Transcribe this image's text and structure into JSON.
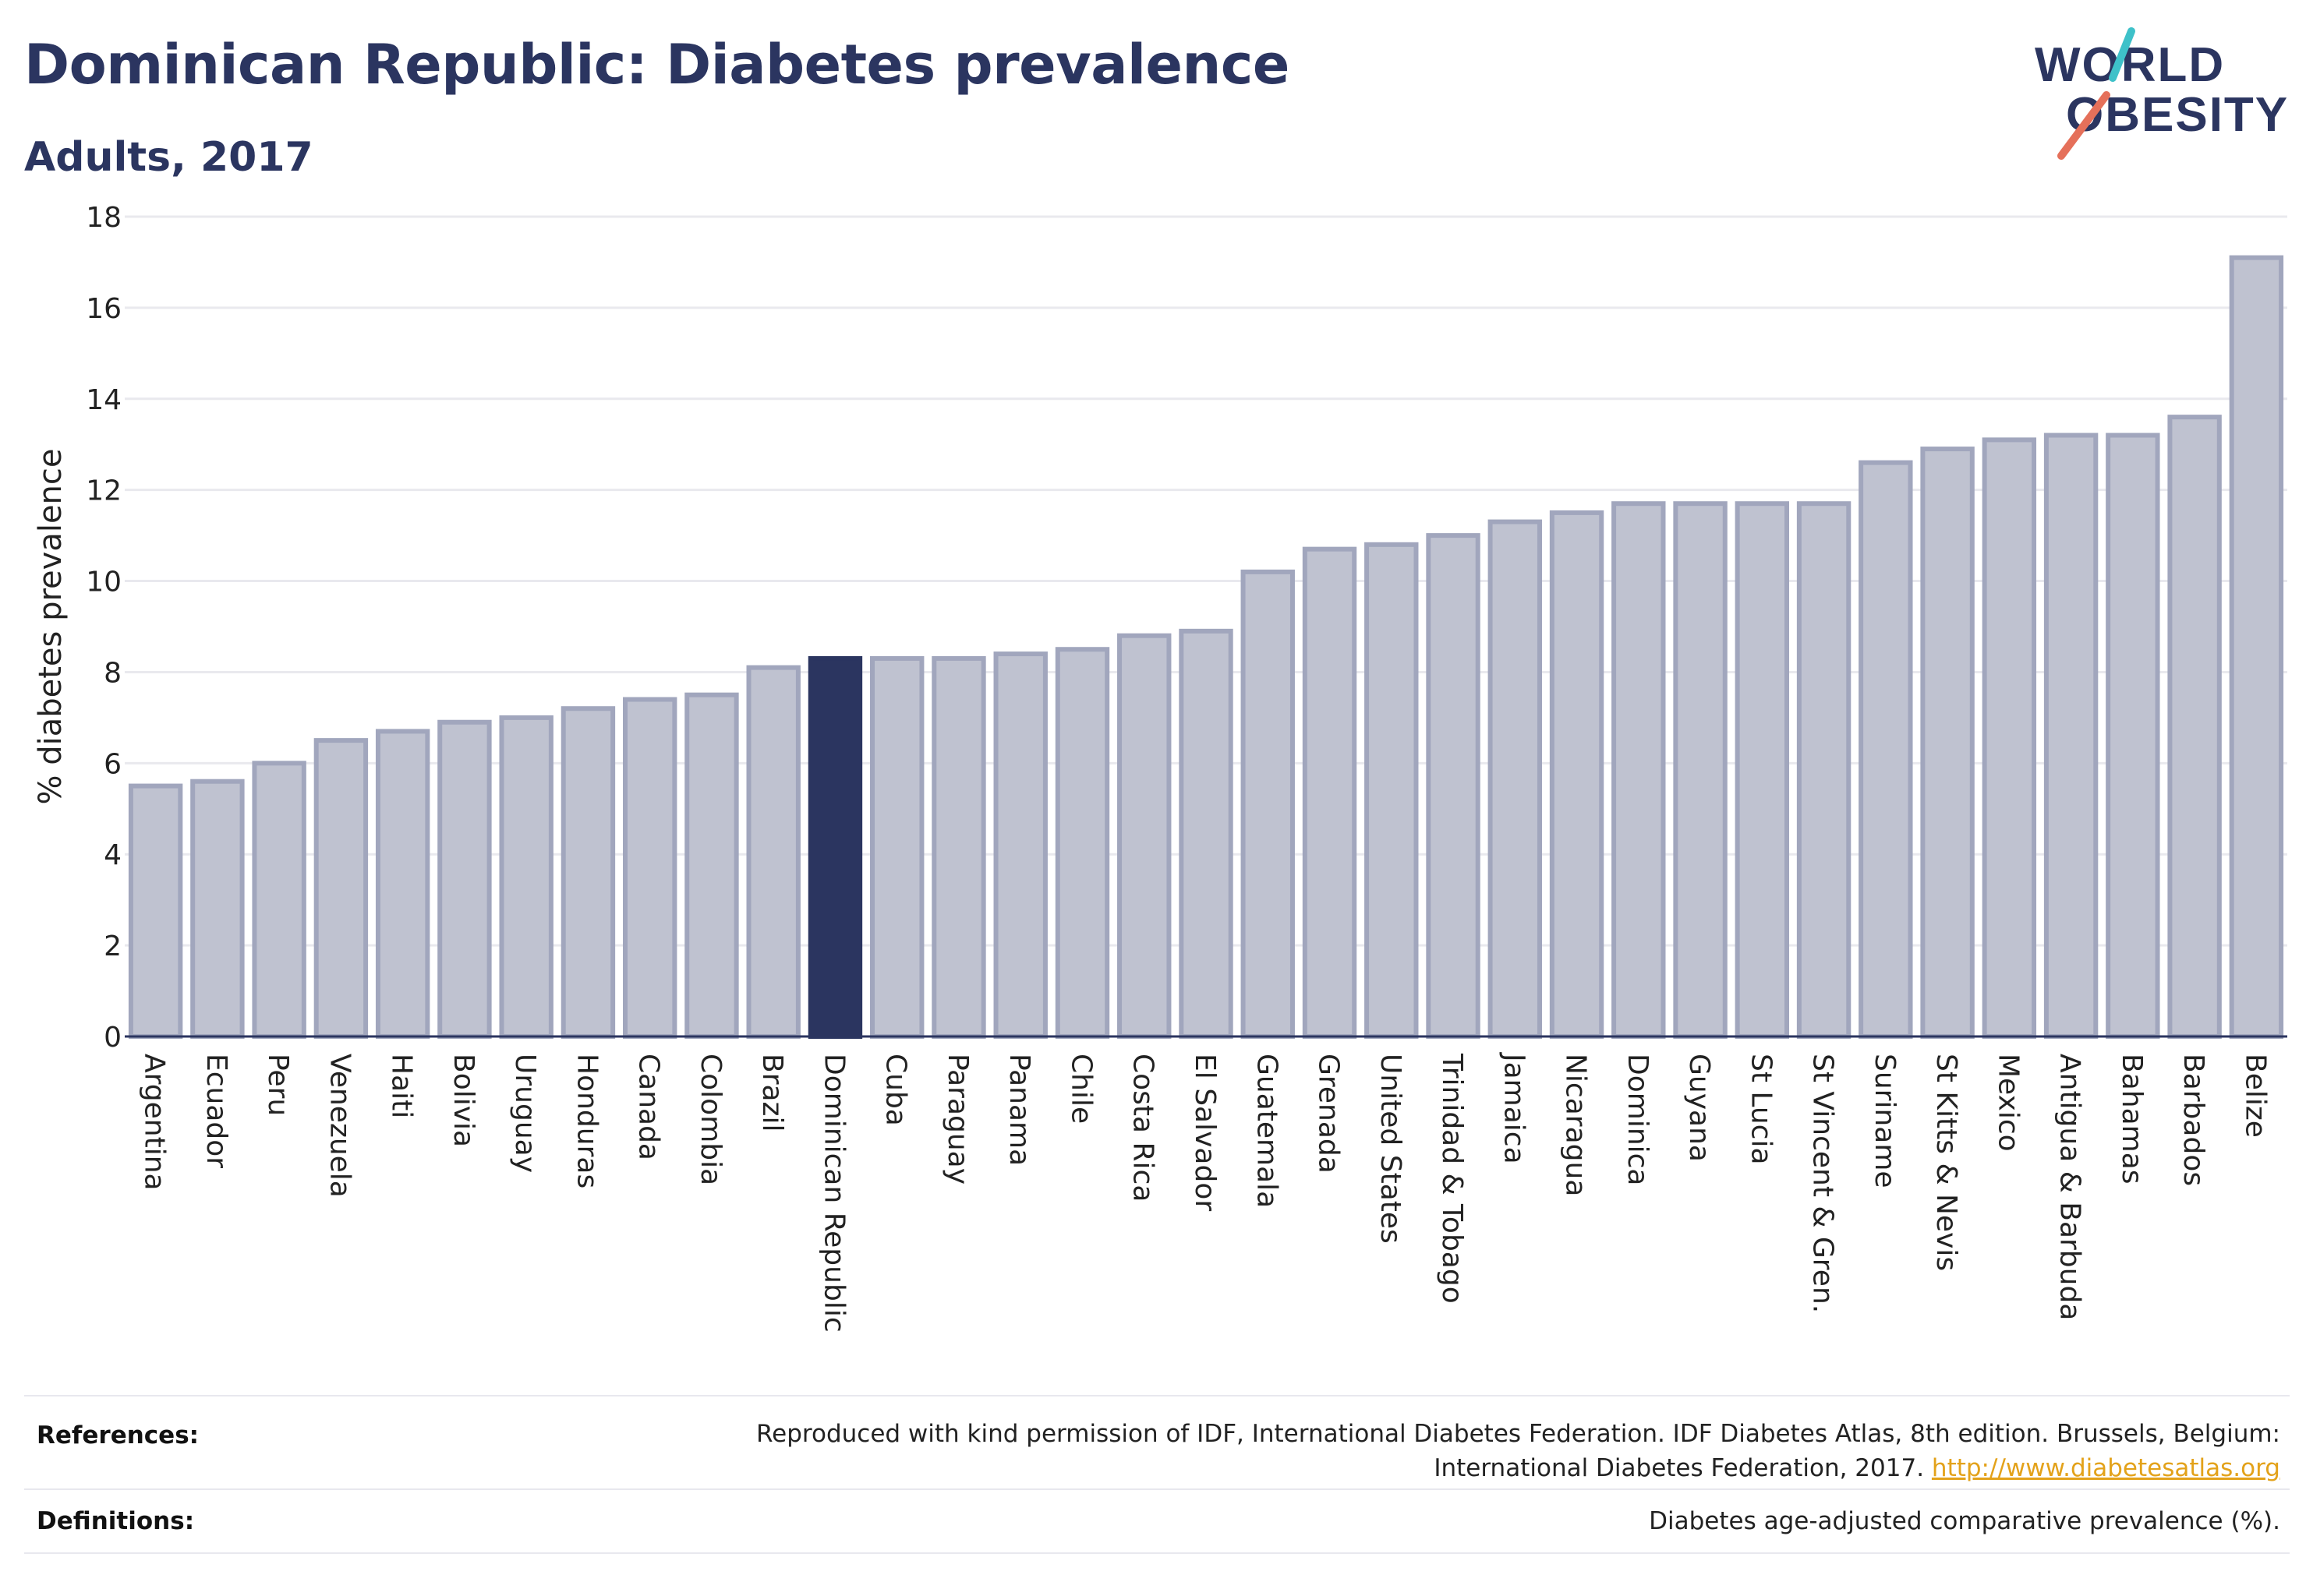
{
  "header": {
    "title": "Dominican Republic: Diabetes prevalence",
    "subtitle": "Adults, 2017"
  },
  "logo": {
    "line1": "WORLD",
    "line2": "OBESITY",
    "accent_colors": [
      "#3ec1c9",
      "#e5705a"
    ]
  },
  "chart_data": {
    "type": "bar",
    "ylabel": "% diabetes prevalence",
    "ylim": [
      0,
      18
    ],
    "yticks": [
      0,
      2,
      4,
      6,
      8,
      10,
      12,
      14,
      16,
      18
    ],
    "grid": true,
    "highlight": "Dominican Republic",
    "colors": {
      "bar": "#bfc2d0",
      "bar_border": "#a1a6bd",
      "highlight": "#2b3560"
    },
    "categories": [
      "Argentina",
      "Ecuador",
      "Peru",
      "Venezuela",
      "Haiti",
      "Bolivia",
      "Uruguay",
      "Honduras",
      "Canada",
      "Colombia",
      "Brazil",
      "Dominican Republic",
      "Cuba",
      "Paraguay",
      "Panama",
      "Chile",
      "Costa Rica",
      "El Salvador",
      "Guatemala",
      "Grenada",
      "United States",
      "Trinidad & Tobago",
      "Jamaica",
      "Nicaragua",
      "Dominica",
      "Guyana",
      "St Lucia",
      "St Vincent & Gren.",
      "Suriname",
      "St Kitts & Nevis",
      "Mexico",
      "Antigua & Barbuda",
      "Bahamas",
      "Barbados",
      "Belize"
    ],
    "values": [
      5.5,
      5.6,
      6.0,
      6.5,
      6.7,
      6.9,
      7.0,
      7.2,
      7.4,
      7.5,
      8.1,
      8.3,
      8.3,
      8.3,
      8.4,
      8.5,
      8.8,
      8.9,
      10.2,
      10.7,
      10.8,
      11.0,
      11.3,
      11.5,
      11.7,
      11.7,
      11.7,
      11.7,
      12.6,
      12.9,
      13.1,
      13.2,
      13.2,
      13.6,
      17.1
    ]
  },
  "footer": {
    "references_label": "References:",
    "references_line1": "Reproduced with kind permission of IDF, International Diabetes Federation. IDF Diabetes Atlas, 8th edition. Brussels, Belgium:",
    "references_line2": "International Diabetes Federation, 2017.",
    "references_link": "http://www.diabetesatlas.org",
    "definitions_label": "Definitions:",
    "definitions_text": "Diabetes age-adjusted comparative prevalence (%)."
  }
}
